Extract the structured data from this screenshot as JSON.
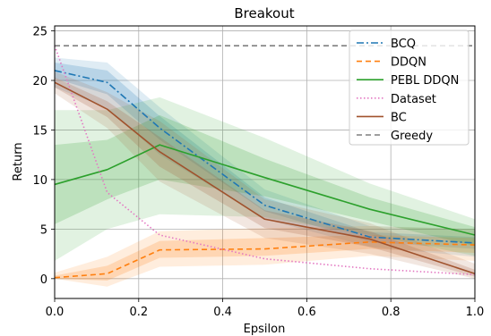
{
  "chart_data": {
    "type": "line",
    "title": "Breakout",
    "xlabel": "Epsilon",
    "ylabel": "Return",
    "xlim": [
      0.0,
      1.0
    ],
    "ylim": [
      -2.0,
      25.5
    ],
    "xticks": [
      0.0,
      0.2,
      0.4,
      0.6,
      0.8,
      1.0
    ],
    "xtick_labels": [
      "0.0",
      "0.2",
      "0.4",
      "0.6",
      "0.8",
      "1.0"
    ],
    "yticks": [
      0,
      5,
      10,
      15,
      20,
      25
    ],
    "ytick_labels": [
      "0",
      "5",
      "10",
      "15",
      "20",
      "25"
    ],
    "grid": true,
    "legend_position": "top-right",
    "series": [
      {
        "name": "BCQ",
        "color": "#1f77b4",
        "line_style": "dashdot",
        "x": [
          0.0,
          0.125,
          0.25,
          0.5,
          0.75,
          1.0
        ],
        "y": [
          21.0,
          19.8,
          15.2,
          7.4,
          4.2,
          3.6
        ],
        "band_inner": [
          [
            20.2,
            21.8
          ],
          [
            18.6,
            21.0
          ],
          [
            14.0,
            16.4
          ],
          [
            6.8,
            8.2
          ],
          [
            3.7,
            4.7
          ],
          [
            3.0,
            4.2
          ]
        ],
        "band_outer": [
          [
            19.3,
            22.3
          ],
          [
            17.2,
            21.8
          ],
          [
            12.5,
            17.3
          ],
          [
            6.0,
            9.0
          ],
          [
            3.2,
            5.3
          ],
          [
            2.2,
            5.0
          ]
        ]
      },
      {
        "name": "DDQN",
        "color": "#ff7f0e",
        "line_style": "dashed",
        "x": [
          0.0,
          0.125,
          0.25,
          0.5,
          0.75,
          1.0
        ],
        "y": [
          0.1,
          0.5,
          2.9,
          3.0,
          3.7,
          3.4
        ],
        "band_inner": [
          [
            0.0,
            0.3
          ],
          [
            -0.2,
            1.3
          ],
          [
            2.1,
            3.8
          ],
          [
            2.3,
            4.1
          ],
          [
            3.0,
            4.4
          ],
          [
            2.6,
            4.1
          ]
        ],
        "band_outer": [
          [
            0.0,
            0.6
          ],
          [
            -0.8,
            2.2
          ],
          [
            1.2,
            4.8
          ],
          [
            1.4,
            5.1
          ],
          [
            2.3,
            5.3
          ],
          [
            1.8,
            5.0
          ]
        ]
      },
      {
        "name": "PEBL DDQN",
        "color": "#2ca02c",
        "line_style": "solid",
        "x": [
          0.0,
          0.125,
          0.25,
          0.5,
          0.75,
          1.0
        ],
        "y": [
          9.5,
          11.0,
          13.5,
          10.2,
          7.0,
          4.4
        ],
        "band_inner": [
          [
            5.5,
            13.5
          ],
          [
            8.0,
            14.0
          ],
          [
            10.0,
            16.5
          ],
          [
            8.3,
            12.1
          ],
          [
            5.8,
            8.2
          ],
          [
            3.3,
            5.2
          ]
        ],
        "band_outer": [
          [
            1.8,
            17.0
          ],
          [
            5.0,
            17.0
          ],
          [
            6.5,
            18.3
          ],
          [
            6.2,
            14.2
          ],
          [
            4.4,
            9.6
          ],
          [
            2.3,
            6.0
          ]
        ]
      },
      {
        "name": "Dataset",
        "color": "#e377c2",
        "line_style": "dotted",
        "x": [
          0.0,
          0.125,
          0.25,
          0.5,
          0.75,
          1.0
        ],
        "y": [
          23.5,
          8.7,
          4.4,
          2.0,
          1.0,
          0.4
        ],
        "band_inner": [],
        "band_outer": []
      },
      {
        "name": "BC",
        "color": "#a0522d",
        "line_style": "solid",
        "x": [
          0.0,
          0.125,
          0.25,
          0.5,
          0.75,
          1.0
        ],
        "y": [
          19.8,
          17.1,
          12.8,
          6.0,
          4.0,
          0.5
        ],
        "band_inner": [
          [
            19.3,
            20.3
          ],
          [
            16.3,
            17.9
          ],
          [
            11.3,
            14.3
          ],
          [
            5.1,
            6.9
          ],
          [
            3.2,
            4.8
          ],
          [
            0.2,
            0.9
          ]
        ],
        "band_outer": [
          [
            18.7,
            20.9
          ],
          [
            15.2,
            18.8
          ],
          [
            9.8,
            15.9
          ],
          [
            4.1,
            8.0
          ],
          [
            2.5,
            5.6
          ],
          [
            0.0,
            1.5
          ]
        ]
      },
      {
        "name": "Greedy",
        "color": "#7f7f7f",
        "line_style": "dashed",
        "x": [
          0.0,
          1.0
        ],
        "y": [
          23.5,
          23.5
        ],
        "band_inner": [],
        "band_outer": []
      }
    ]
  }
}
